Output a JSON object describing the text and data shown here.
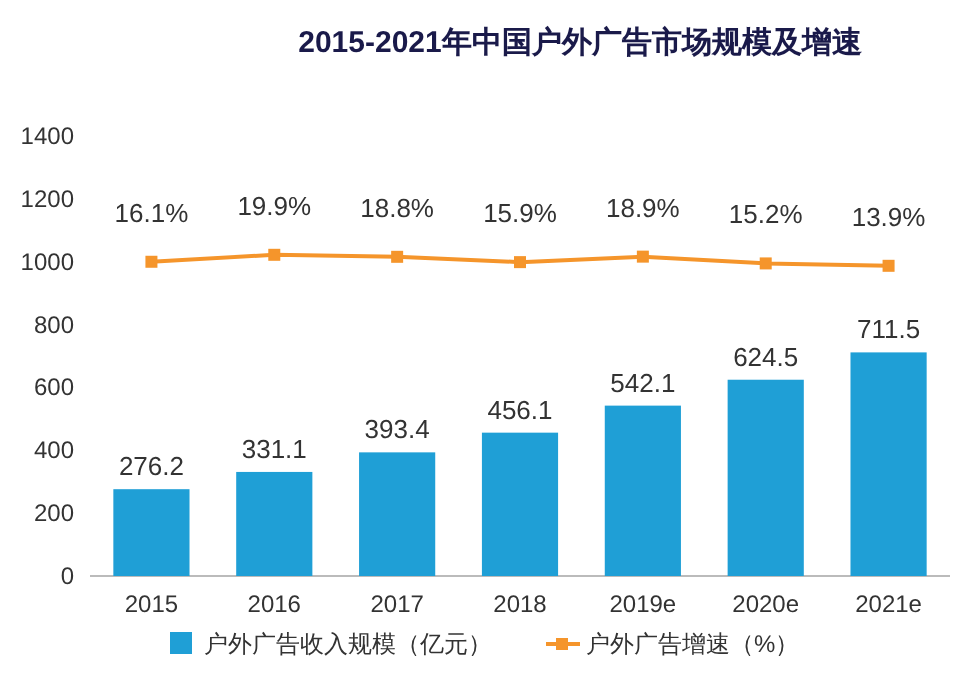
{
  "chart_data": {
    "type": "bar",
    "title": "2015-2021年中国户外广告市场规模及增速",
    "categories": [
      "2015",
      "2016",
      "2017",
      "2018",
      "2019e",
      "2020e",
      "2021e"
    ],
    "series": [
      {
        "name": "户外广告收入规模（亿元）",
        "color": "#1f9fd6",
        "values": [
          276.2,
          331.1,
          393.4,
          456.1,
          542.1,
          624.5,
          711.5
        ],
        "value_labels": [
          "276.2",
          "331.1",
          "393.4",
          "456.1",
          "542.1",
          "624.5",
          "711.5"
        ]
      },
      {
        "name": "户外广告增速（%）",
        "type": "line",
        "axis": "y2",
        "color": "#f5952b",
        "marker": "square",
        "values": [
          16.1,
          19.9,
          18.8,
          15.9,
          18.9,
          15.2,
          13.9
        ],
        "value_labels": [
          "16.1%",
          "19.9%",
          "18.8%",
          "15.9%",
          "18.9%",
          "15.2%",
          "13.9%"
        ]
      }
    ],
    "ylim": [
      0,
      1400
    ],
    "yticks": [
      0,
      200,
      400,
      600,
      800,
      1000,
      1200,
      1400
    ],
    "legend": "bottom",
    "grid": false
  }
}
